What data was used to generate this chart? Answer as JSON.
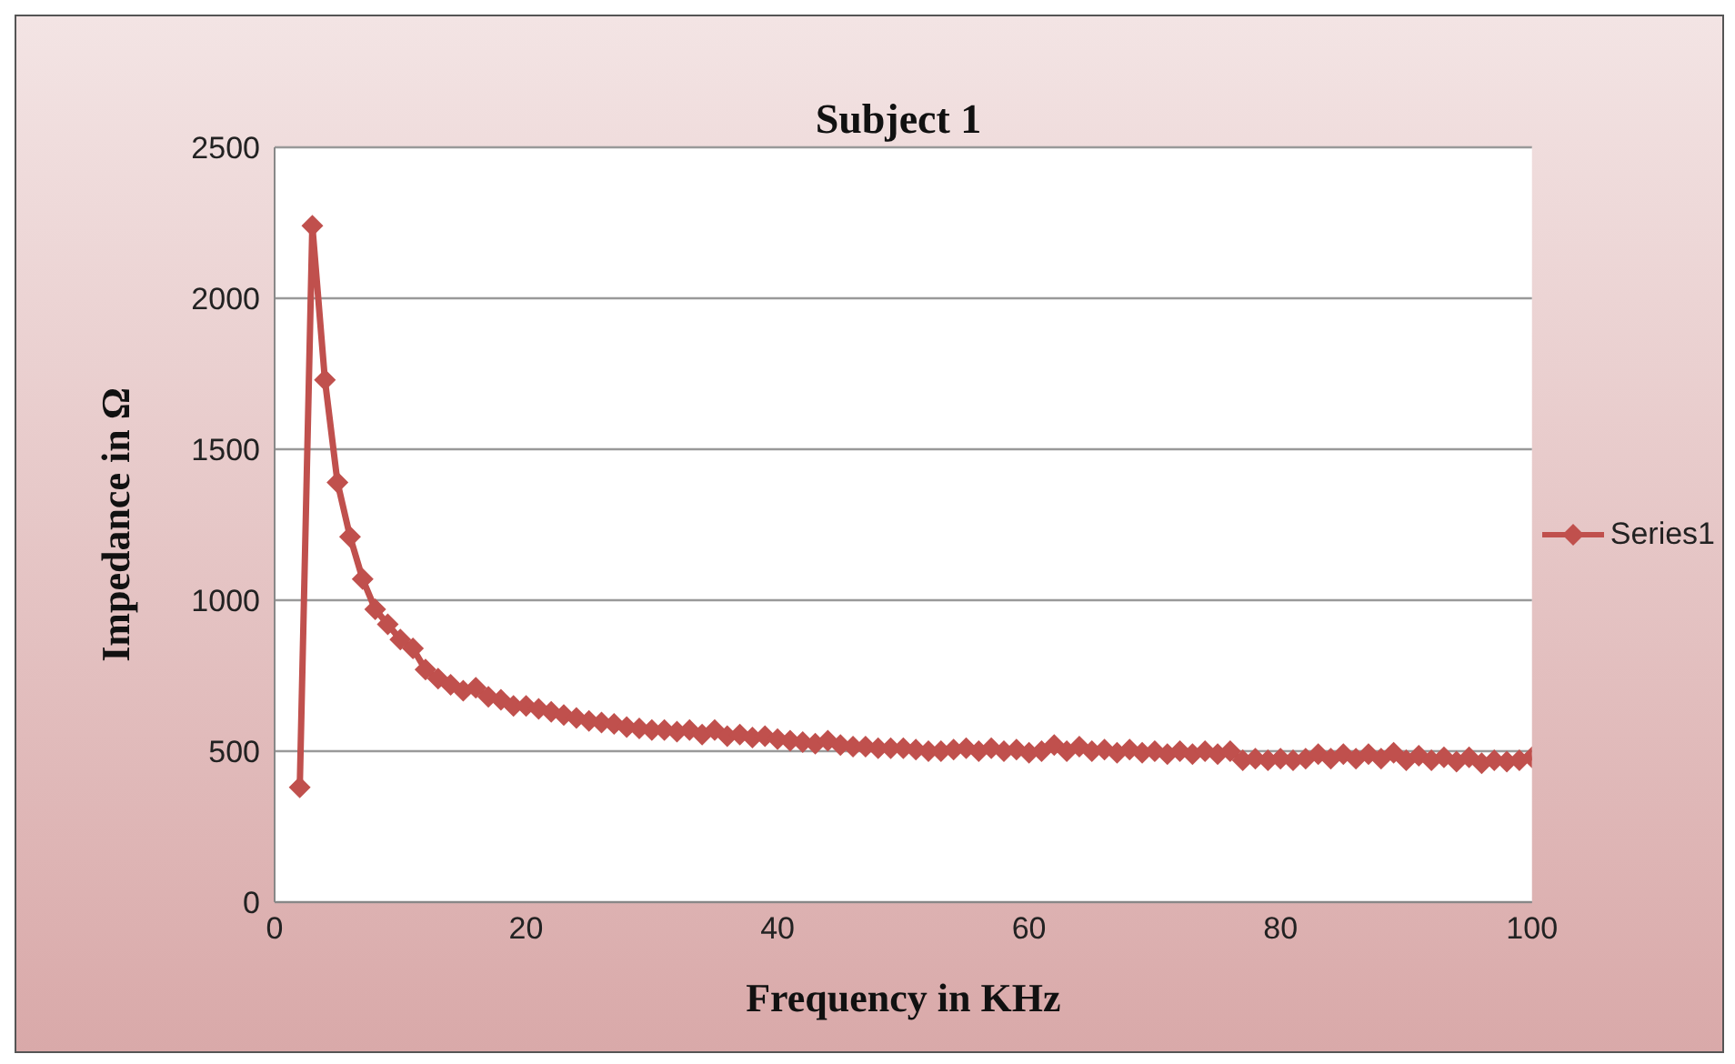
{
  "chart_data": {
    "type": "line",
    "title": "Subject 1",
    "xlabel": "Frequency in KHz",
    "ylabel": "Impedance in Ω",
    "xlim": [
      0,
      100
    ],
    "xticks": [
      0,
      20,
      40,
      60,
      80,
      100
    ],
    "ylim": [
      0,
      2500
    ],
    "yticks": [
      0,
      500,
      1000,
      1500,
      2000,
      2500
    ],
    "grid": "y",
    "legend": "right",
    "marker": "diamond",
    "line_style": "solid",
    "x": [
      2,
      3,
      4,
      5,
      6,
      7,
      8,
      9,
      10,
      11,
      12,
      13,
      14,
      15,
      16,
      17,
      18,
      19,
      20,
      21,
      22,
      23,
      24,
      25,
      26,
      27,
      28,
      29,
      30,
      31,
      32,
      33,
      34,
      35,
      36,
      37,
      38,
      39,
      40,
      41,
      42,
      43,
      44,
      45,
      46,
      47,
      48,
      49,
      50,
      51,
      52,
      53,
      54,
      55,
      56,
      57,
      58,
      59,
      60,
      61,
      62,
      63,
      64,
      65,
      66,
      67,
      68,
      69,
      70,
      71,
      72,
      73,
      74,
      75,
      76,
      77,
      78,
      79,
      80,
      81,
      82,
      83,
      84,
      85,
      86,
      87,
      88,
      89,
      90,
      91,
      92,
      93,
      94,
      95,
      96,
      97,
      98,
      99,
      100
    ],
    "series": [
      {
        "name": "Series1",
        "color": "#c0504d",
        "values": [
          380,
          2240,
          1730,
          1390,
          1210,
          1070,
          970,
          920,
          870,
          840,
          770,
          740,
          720,
          700,
          710,
          680,
          670,
          650,
          650,
          640,
          630,
          620,
          610,
          600,
          595,
          590,
          580,
          575,
          570,
          570,
          565,
          570,
          555,
          570,
          550,
          555,
          545,
          550,
          540,
          535,
          530,
          525,
          535,
          520,
          515,
          515,
          510,
          510,
          510,
          505,
          500,
          500,
          505,
          510,
          500,
          510,
          500,
          505,
          495,
          500,
          520,
          500,
          515,
          500,
          505,
          495,
          505,
          495,
          500,
          490,
          500,
          490,
          500,
          490,
          500,
          470,
          475,
          470,
          475,
          470,
          475,
          490,
          475,
          490,
          475,
          490,
          475,
          495,
          470,
          485,
          470,
          480,
          465,
          480,
          460,
          470,
          465,
          470,
          480
        ]
      }
    ]
  }
}
